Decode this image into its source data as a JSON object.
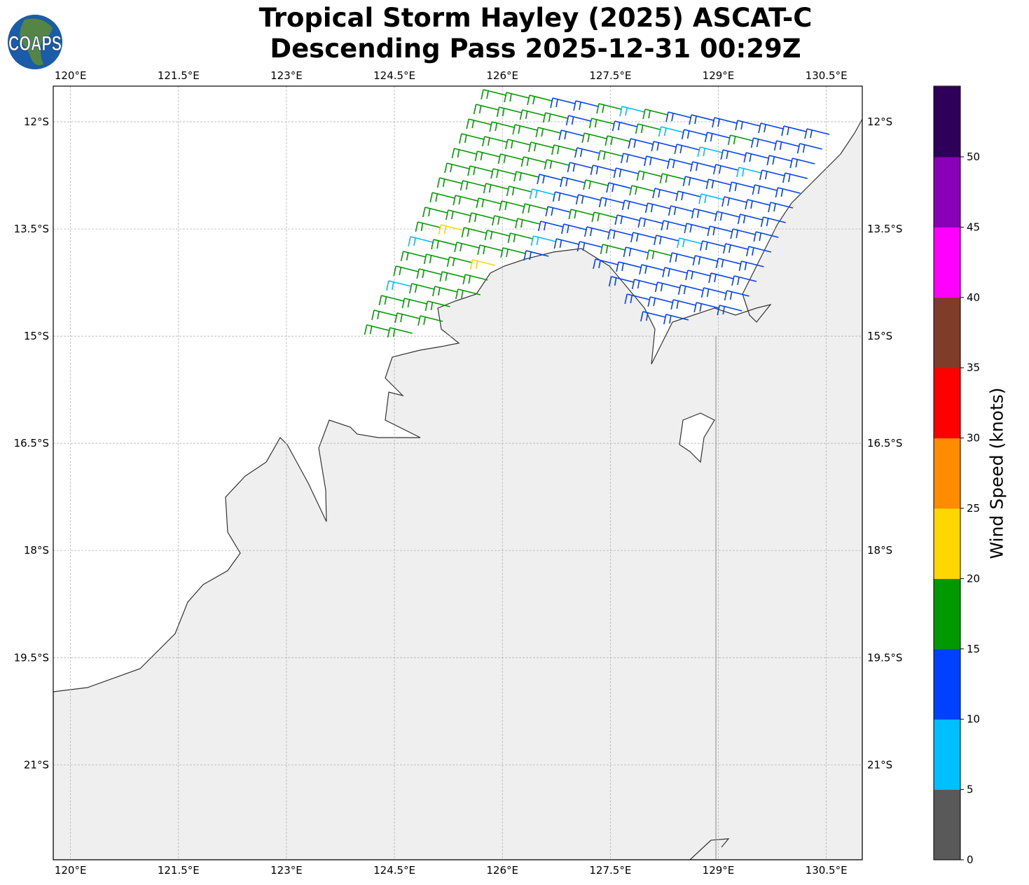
{
  "title": {
    "line1": "Tropical Storm Hayley (2025) ASCAT-C",
    "line2": "Descending Pass 2025-12-31 00:29Z"
  },
  "logo": {
    "text": "COAPS",
    "colors": {
      "globe": "#1a5ca8",
      "land": "#5b8a3a"
    }
  },
  "map": {
    "lon_range": [
      119.76,
      131.0
    ],
    "lat_range": [
      -22.33,
      -11.5
    ],
    "lon_ticks": [
      "120°E",
      "121.5°E",
      "123°E",
      "124.5°E",
      "126°E",
      "127.5°E",
      "129°E",
      "130.5°E"
    ],
    "lat_ticks": [
      "12°S",
      "13.5°S",
      "15°S",
      "16.5°S",
      "18°S",
      "19.5°S",
      "21°S"
    ],
    "gridlines": true,
    "ocean_color": "#ffffff",
    "land_color": "#efefef",
    "coast_color": "#333333",
    "barb_field": "wind barbs over ocean in NE part of map, mostly 10-15 kt (blue) with 15-20 kt (green) to the west, a few 20-25 kt (yellow) and 5-10 kt (cyan)"
  },
  "colorbar": {
    "label": "Wind Speed (knots)",
    "tick_labels": [
      "0",
      "5",
      "10",
      "15",
      "20",
      "25",
      "30",
      "35",
      "40",
      "45",
      "50"
    ],
    "bins": [
      {
        "min": 0,
        "max": 5,
        "color": "#595959"
      },
      {
        "min": 5,
        "max": 10,
        "color": "#00bfff"
      },
      {
        "min": 10,
        "max": 15,
        "color": "#0040ff"
      },
      {
        "min": 15,
        "max": 20,
        "color": "#009900"
      },
      {
        "min": 20,
        "max": 25,
        "color": "#ffd700"
      },
      {
        "min": 25,
        "max": 30,
        "color": "#ff8c00"
      },
      {
        "min": 30,
        "max": 35,
        "color": "#ff0000"
      },
      {
        "min": 35,
        "max": 40,
        "color": "#7f3c28"
      },
      {
        "min": 40,
        "max": 45,
        "color": "#ff00ff"
      },
      {
        "min": 45,
        "max": 50,
        "color": "#8a00b8"
      },
      {
        "min": 50,
        "max": 55,
        "color": "#2e0059"
      }
    ]
  }
}
